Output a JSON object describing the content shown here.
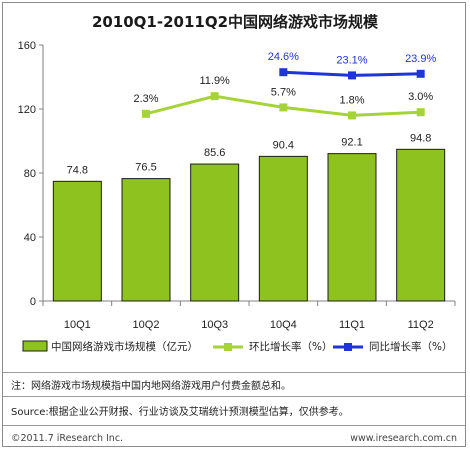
{
  "title": "2010Q1-2011Q2中国网络游戏市场规模",
  "chart_data": {
    "type": "bar",
    "categories": [
      "10Q1",
      "10Q2",
      "10Q3",
      "10Q4",
      "11Q1",
      "11Q2"
    ],
    "ylim": [
      0,
      160
    ],
    "yticks": [
      0,
      40,
      80,
      120,
      160
    ],
    "series": [
      {
        "name": "中国网络游戏市场规模（亿元）",
        "type": "bar",
        "values": [
          74.8,
          76.5,
          85.6,
          90.4,
          92.1,
          94.8
        ],
        "labels": [
          "74.8",
          "76.5",
          "85.6",
          "90.4",
          "92.1",
          "94.8"
        ],
        "color": "#8dc21f"
      },
      {
        "name": "环比增长率（%）",
        "type": "line",
        "values": [
          null,
          2.3,
          11.9,
          5.7,
          1.8,
          3.0
        ],
        "labels": [
          "",
          "2.3%",
          "11.9%",
          "5.7%",
          "1.8%",
          "3.0%"
        ],
        "color": "#a6d33a"
      },
      {
        "name": "同比增长率（%）",
        "type": "line",
        "values": [
          null,
          null,
          null,
          24.6,
          23.1,
          23.9
        ],
        "labels": [
          "",
          "",
          "",
          "24.6%",
          "23.1%",
          "23.9%"
        ],
        "color": "#1f35d6"
      }
    ],
    "grid": false
  },
  "notes": {
    "note": "注：网络游戏市场规模指中国内地网络游戏用户付费金额总和。",
    "source": "Source:根据企业公开财报、行业访谈及艾瑞统计预测模型估算，仅供参考。"
  },
  "footer": {
    "copyright": "©2011.7 iResearch Inc.",
    "url": "www.iresearch.com.cn"
  }
}
